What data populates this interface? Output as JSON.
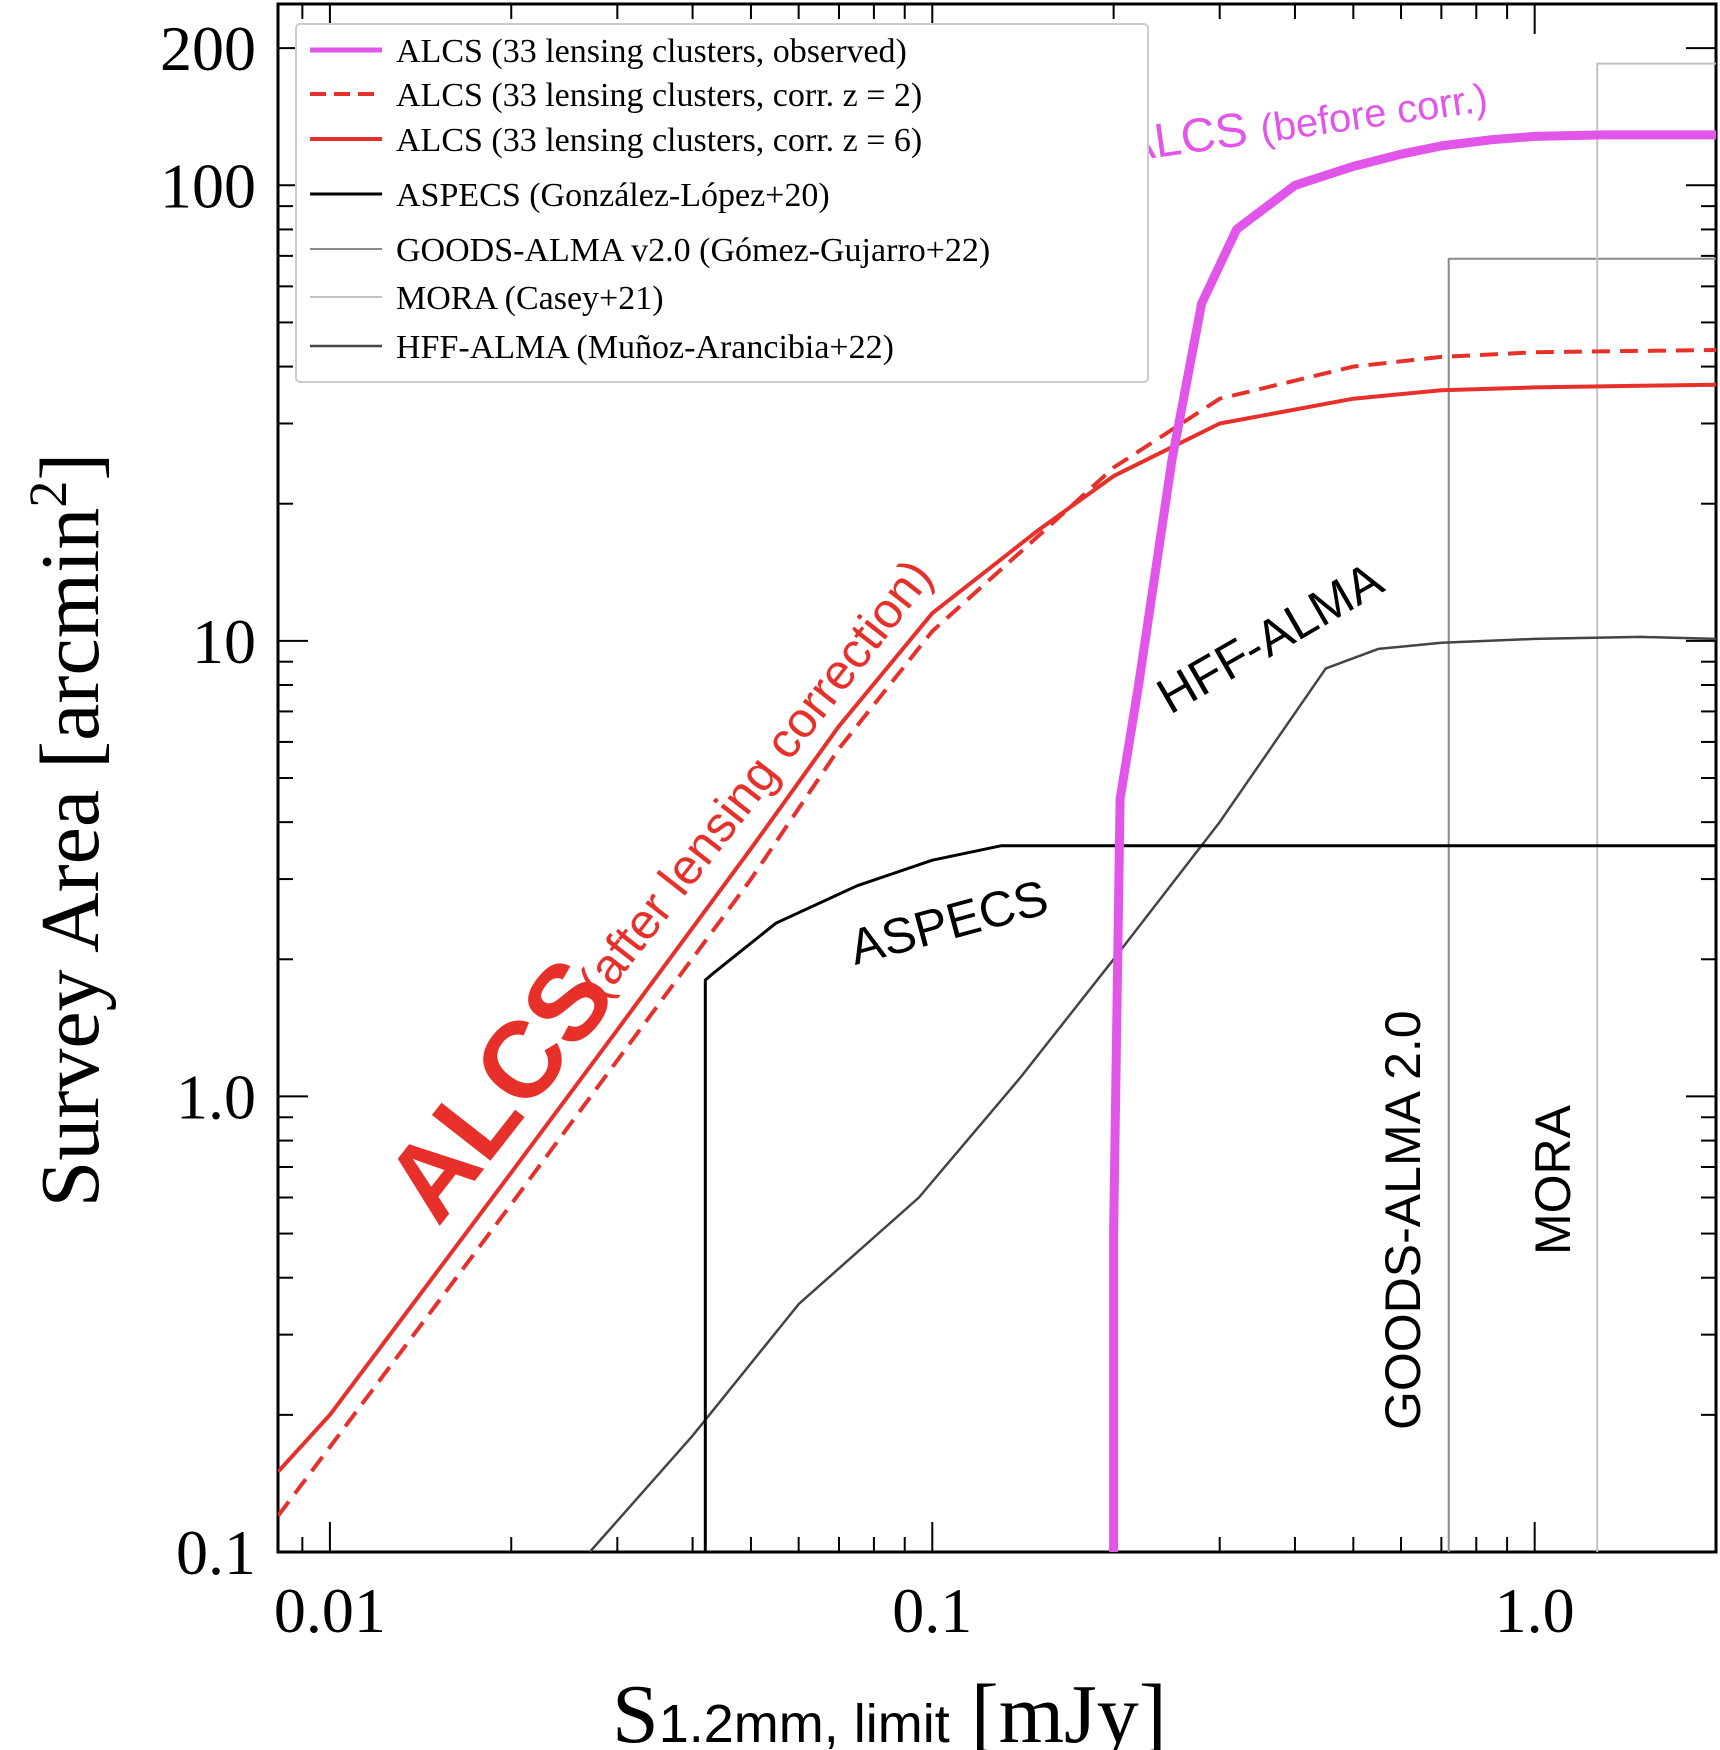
{
  "chart_data": {
    "type": "line",
    "xlabel_main": "S",
    "xlabel_sub": "1.2mm, limit",
    "xlabel_unit": "[mJy]",
    "ylabel_main": "Survey Area [arcmin",
    "ylabel_sup": "2",
    "ylabel_close": "]",
    "xscale": "log",
    "yscale": "log",
    "xlim": [
      0.0082,
      2.0
    ],
    "ylim": [
      0.1,
      250
    ],
    "xticks": [
      {
        "value": 0.01,
        "label": "0.01"
      },
      {
        "value": 0.1,
        "label": "0.1"
      },
      {
        "value": 1.0,
        "label": "1.0"
      }
    ],
    "yticks": [
      {
        "value": 0.1,
        "label": "0.1"
      },
      {
        "value": 1.0,
        "label": "1.0"
      },
      {
        "value": 10,
        "label": "10"
      },
      {
        "value": 100,
        "label": "100"
      },
      {
        "value": 200,
        "label": "200"
      }
    ],
    "legend_position": "top-left",
    "series": [
      {
        "name": "ALCS (33 lensing clusters, observed)",
        "color": "#e155e9",
        "style": "solid",
        "width": 9,
        "x": [
          0.2,
          0.2,
          0.205,
          0.22,
          0.25,
          0.28,
          0.32,
          0.4,
          0.5,
          0.6,
          0.7,
          0.85,
          1.0,
          1.3,
          1.7,
          2.0
        ],
        "y": [
          0.1,
          0.5,
          4.5,
          8.0,
          25.0,
          55.0,
          80.0,
          100.0,
          110.0,
          117.0,
          122.0,
          126.0,
          128.0,
          129.0,
          129.0,
          129.0
        ]
      },
      {
        "name": "ALCS (33 lensing clusters, corr. z = 2)",
        "color": "#e8302a",
        "style": "dashed",
        "width": 4,
        "x": [
          0.0082,
          0.01,
          0.02,
          0.03,
          0.05,
          0.07,
          0.1,
          0.15,
          0.2,
          0.3,
          0.5,
          0.7,
          1.0,
          1.5,
          2.0
        ],
        "y": [
          0.12,
          0.17,
          0.58,
          1.2,
          3.0,
          5.8,
          10.5,
          17.0,
          24.0,
          34.0,
          40.0,
          42.0,
          43.0,
          43.3,
          43.5
        ]
      },
      {
        "name": "ALCS (33 lensing clusters, corr. z = 6)",
        "color": "#e8302a",
        "style": "solid",
        "width": 4,
        "x": [
          0.0082,
          0.01,
          0.02,
          0.03,
          0.05,
          0.07,
          0.1,
          0.15,
          0.2,
          0.3,
          0.5,
          0.7,
          1.0,
          1.5,
          2.0
        ],
        "y": [
          0.15,
          0.2,
          0.68,
          1.4,
          3.5,
          6.5,
          11.5,
          17.5,
          23.0,
          30.0,
          34.0,
          35.5,
          36.0,
          36.3,
          36.5
        ]
      },
      {
        "name": "ASPECS (González-López+20)",
        "color": "#000000",
        "style": "solid",
        "width": 3,
        "x": [
          0.042,
          0.042,
          0.043,
          0.055,
          0.075,
          0.1,
          0.13,
          0.2,
          0.5,
          1.0,
          2.0
        ],
        "y": [
          0.1,
          1.8,
          1.85,
          2.4,
          2.9,
          3.3,
          3.55,
          3.55,
          3.55,
          3.55,
          3.55
        ]
      },
      {
        "name": "GOODS-ALMA v2.0 (Gómez-Gujarro+22)",
        "color": "#8a8a8a",
        "style": "solid",
        "width": 2,
        "x": [
          0.72,
          0.72,
          2.0
        ],
        "y": [
          0.1,
          69.0,
          69.0
        ]
      },
      {
        "name": "MORA (Casey+21)",
        "color": "#c2c2c2",
        "style": "solid",
        "width": 2,
        "x": [
          1.27,
          1.27,
          2.0
        ],
        "y": [
          0.1,
          185.0,
          185.0
        ]
      },
      {
        "name": "HFF-ALMA (Muñoz-Arancibia+22)",
        "color": "#444444",
        "style": "solid",
        "width": 2.5,
        "x": [
          0.027,
          0.04,
          0.06,
          0.095,
          0.14,
          0.2,
          0.3,
          0.45,
          0.55,
          0.7,
          1.0,
          1.5,
          2.0
        ],
        "y": [
          0.1,
          0.18,
          0.35,
          0.6,
          1.1,
          2.0,
          4.0,
          8.7,
          9.6,
          9.9,
          10.1,
          10.2,
          10.1
        ]
      }
    ],
    "annotations": [
      {
        "id": "alcs-before",
        "text": "ALCS",
        "sub": "(before corr.)",
        "color": "#e155e9"
      },
      {
        "id": "alcs-after",
        "text": "ALCS",
        "sub": "(after lensing correction)",
        "color": "#e8302a"
      },
      {
        "id": "hff",
        "text": "HFF-ALMA",
        "color": "#000000"
      },
      {
        "id": "aspecs",
        "text": "ASPECS",
        "color": "#000000"
      },
      {
        "id": "goods",
        "text": "GOODS-ALMA 2.0",
        "color": "#000000"
      },
      {
        "id": "mora",
        "text": "MORA",
        "color": "#000000"
      }
    ]
  }
}
